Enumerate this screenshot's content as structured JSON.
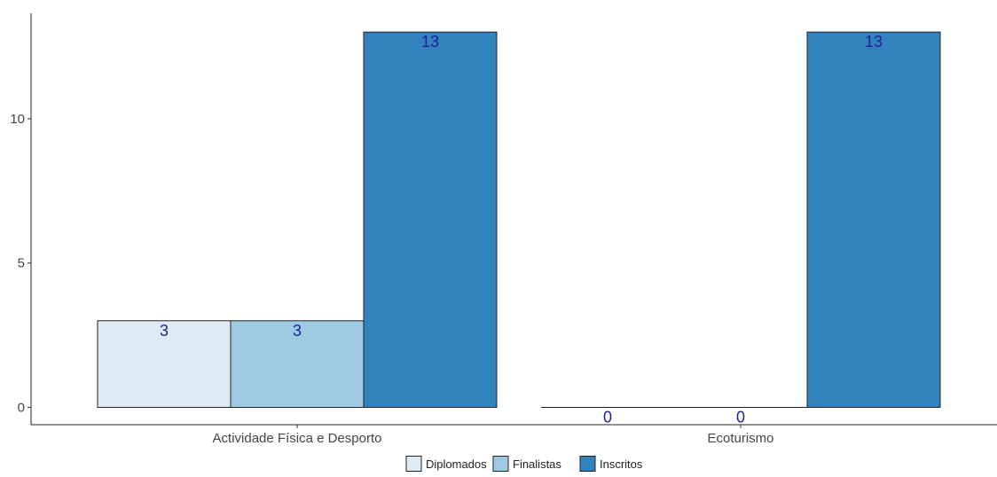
{
  "chart_data": {
    "type": "bar",
    "categories": [
      "Actividade Física e Desporto",
      "Ecoturismo"
    ],
    "series": [
      {
        "name": "Diplomados",
        "values": [
          3,
          0
        ],
        "color": "#deebf7"
      },
      {
        "name": "Finalistas",
        "values": [
          3,
          0
        ],
        "color": "#9ecae1"
      },
      {
        "name": "Inscritos",
        "values": [
          13,
          13
        ],
        "color": "#3182bd"
      }
    ],
    "title": "",
    "xlabel": "",
    "ylabel": "",
    "ylim": [
      -0.6,
      13.65
    ],
    "yticks": [
      0,
      5,
      10
    ],
    "grid": false,
    "legend_position": "bottom",
    "data_label_color": "#1f1f9c"
  }
}
